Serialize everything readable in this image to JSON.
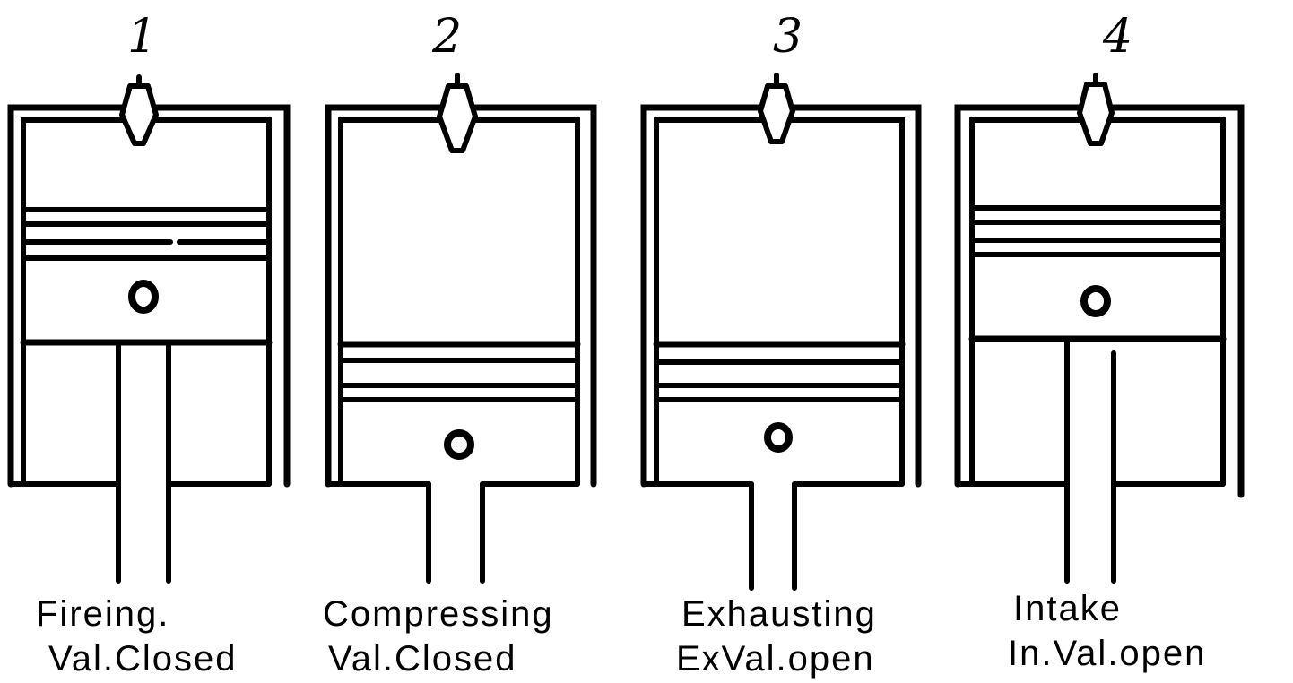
{
  "panels": [
    {
      "number": "1",
      "label_line1": "Fireing.",
      "label_line2": "Val.Closed"
    },
    {
      "number": "2",
      "label_line1": "Compressing",
      "label_line2": "Val.Closed"
    },
    {
      "number": "3",
      "label_line1": "Exhausting",
      "label_line2": "ExVal.open"
    },
    {
      "number": "4",
      "label_line1": "Intake",
      "label_line2": "In.Val.open"
    }
  ]
}
